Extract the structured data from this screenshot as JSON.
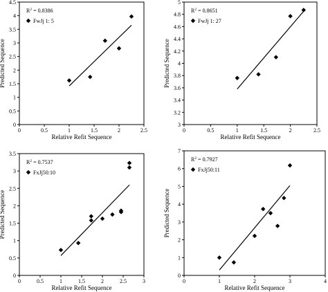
{
  "chart_data": [
    {
      "type": "scatter",
      "title": "",
      "xlabel": "Relative Refit Sequence",
      "ylabel": "Predicted Sequence",
      "xlim": [
        0,
        2.5
      ],
      "ylim": [
        0,
        4.5
      ],
      "xticks": [
        "0",
        "0.5",
        "1",
        "1.5",
        "2",
        "2.5"
      ],
      "yticks": [
        "0",
        "0.5",
        "1",
        "1.5",
        "2",
        "2.5",
        "3",
        "3.5",
        "4",
        "4.5"
      ],
      "legend": {
        "r2": "0.8386",
        "series": "FwJj 1: 5",
        "position": "top-left"
      },
      "series": [
        {
          "name": "FwJj 1: 5",
          "points": [
            [
              1.0,
              1.62
            ],
            [
              1.42,
              1.75
            ],
            [
              1.72,
              3.08
            ],
            [
              2.0,
              2.8
            ],
            [
              2.25,
              3.97
            ]
          ]
        }
      ],
      "trendline": [
        [
          1.0,
          1.42
        ],
        [
          2.25,
          3.65
        ]
      ]
    },
    {
      "type": "scatter",
      "title": "",
      "xlabel": "Relative Refit Sequence",
      "ylabel": "Predicted Sequence",
      "xlim": [
        0,
        2.5
      ],
      "ylim": [
        3,
        5
      ],
      "xticks": [
        "0",
        "0.5",
        "1",
        "1.5",
        "2",
        "2.5"
      ],
      "yticks": [
        "3",
        "3.2",
        "3.4",
        "3.6",
        "3.8",
        "4",
        "4.2",
        "4.4",
        "4.6",
        "4.8",
        "5"
      ],
      "legend": {
        "r2": "0.8651",
        "series": "FwJj 1: 27",
        "position": "top-left"
      },
      "series": [
        {
          "name": "FwJj 1: 27",
          "points": [
            [
              1.0,
              3.76
            ],
            [
              1.4,
              3.82
            ],
            [
              1.73,
              4.1
            ],
            [
              2.0,
              4.77
            ],
            [
              2.25,
              4.87
            ]
          ]
        }
      ],
      "trendline": [
        [
          1.0,
          3.58
        ],
        [
          2.25,
          4.85
        ]
      ]
    },
    {
      "type": "scatter",
      "title": "",
      "xlabel": "Relative Refit Sequence",
      "ylabel": "Predicted Sequence",
      "xlim": [
        0,
        3
      ],
      "ylim": [
        0,
        3.5
      ],
      "xticks": [
        "0",
        "0.5",
        "1",
        "1.5",
        "2",
        "2.5",
        "3"
      ],
      "yticks": [
        "0",
        "0.5",
        "1",
        "1.5",
        "2",
        "2.5",
        "3",
        "3.5"
      ],
      "legend": {
        "r2": "0.7537",
        "series": "FxJj50:10",
        "position": "top-left"
      },
      "series": [
        {
          "name": "FxJj50:10",
          "points": [
            [
              1.0,
              0.73
            ],
            [
              1.42,
              0.93
            ],
            [
              1.73,
              1.58
            ],
            [
              1.73,
              1.7
            ],
            [
              2.0,
              1.63
            ],
            [
              2.24,
              1.75
            ],
            [
              2.45,
              1.82
            ],
            [
              2.45,
              1.86
            ],
            [
              2.65,
              3.1
            ],
            [
              2.65,
              3.23
            ]
          ]
        }
      ],
      "trendline": [
        [
          1.0,
          0.57
        ],
        [
          2.65,
          2.6
        ]
      ]
    },
    {
      "type": "scatter",
      "title": "",
      "xlabel": "Relative Refit Sequence",
      "ylabel": "Predicted Sequence",
      "xlim": [
        0,
        4
      ],
      "ylim": [
        0,
        7
      ],
      "xticks": [
        "0",
        "1",
        "2",
        "3",
        "4"
      ],
      "yticks": [
        "0",
        "1",
        "2",
        "3",
        "4",
        "5",
        "6",
        "7"
      ],
      "legend": {
        "r2": "0.7927",
        "series": "FxJj50:11",
        "position": "top-left"
      },
      "series": [
        {
          "name": "FxJj50:11",
          "points": [
            [
              1.0,
              1.0
            ],
            [
              1.41,
              0.73
            ],
            [
              2.0,
              2.22
            ],
            [
              2.24,
              3.73
            ],
            [
              2.45,
              3.5
            ],
            [
              2.65,
              2.78
            ],
            [
              2.83,
              4.35
            ],
            [
              3.0,
              6.18
            ]
          ]
        }
      ],
      "trendline": [
        [
          1.0,
          0.3
        ],
        [
          3.0,
          5.05
        ]
      ]
    }
  ]
}
